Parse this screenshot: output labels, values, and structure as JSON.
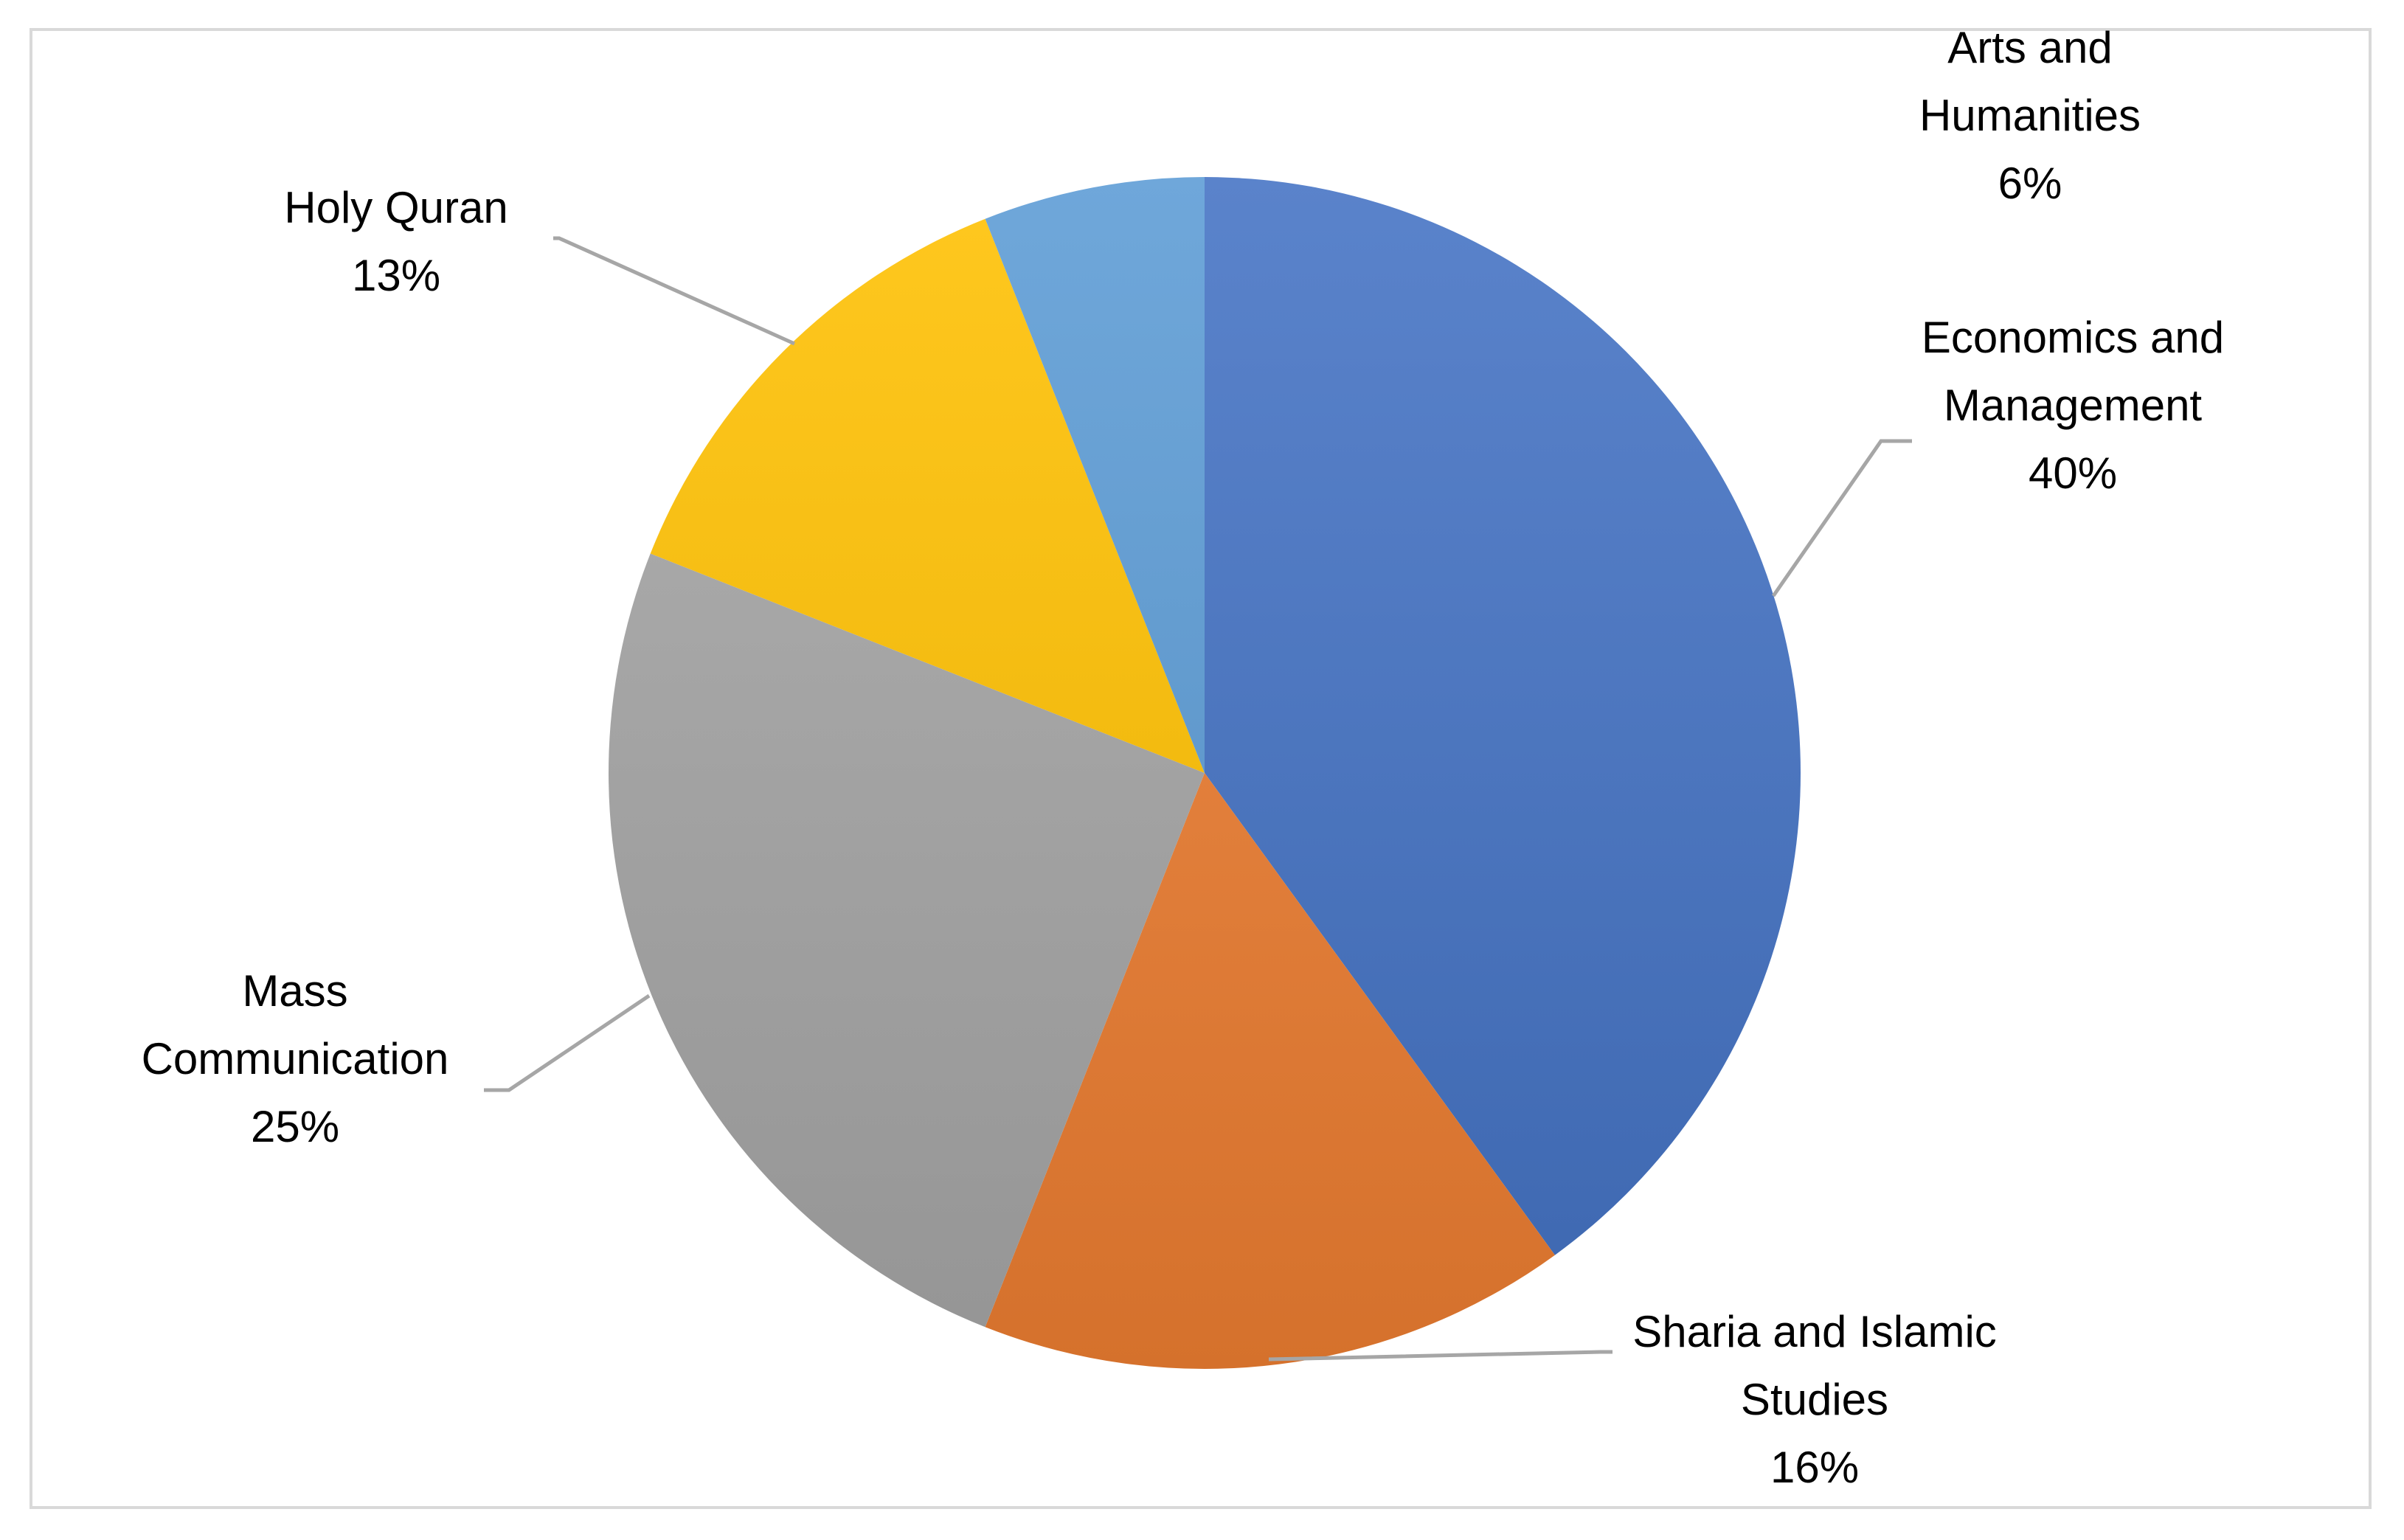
{
  "chart_data": {
    "type": "pie",
    "title": "",
    "start_angle_deg": 0,
    "direction": "clockwise",
    "slices": [
      {
        "name": "Economics and Management",
        "label_lines": [
          "Economics and",
          "Management"
        ],
        "value": 40,
        "value_label": "40%",
        "color": "#4472c4"
      },
      {
        "name": "Sharia and Islamic Studies",
        "label_lines": [
          "Sharia and Islamic",
          "Studies"
        ],
        "value": 16,
        "value_label": "16%",
        "color": "#ed7d31"
      },
      {
        "name": "Mass Communication",
        "label_lines": [
          "Mass",
          "Communication"
        ],
        "value": 25,
        "value_label": "25%",
        "color": "#a5a5a5"
      },
      {
        "name": "Holy Quran",
        "label_lines": [
          "Holy Quran"
        ],
        "value": 13,
        "value_label": "13%",
        "color": "#ffc000"
      },
      {
        "name": "Arts and Humanities",
        "label_lines": [
          "Arts and",
          "Humanities"
        ],
        "value": 6,
        "value_label": "6%",
        "color": "#5b9bd5"
      }
    ]
  }
}
